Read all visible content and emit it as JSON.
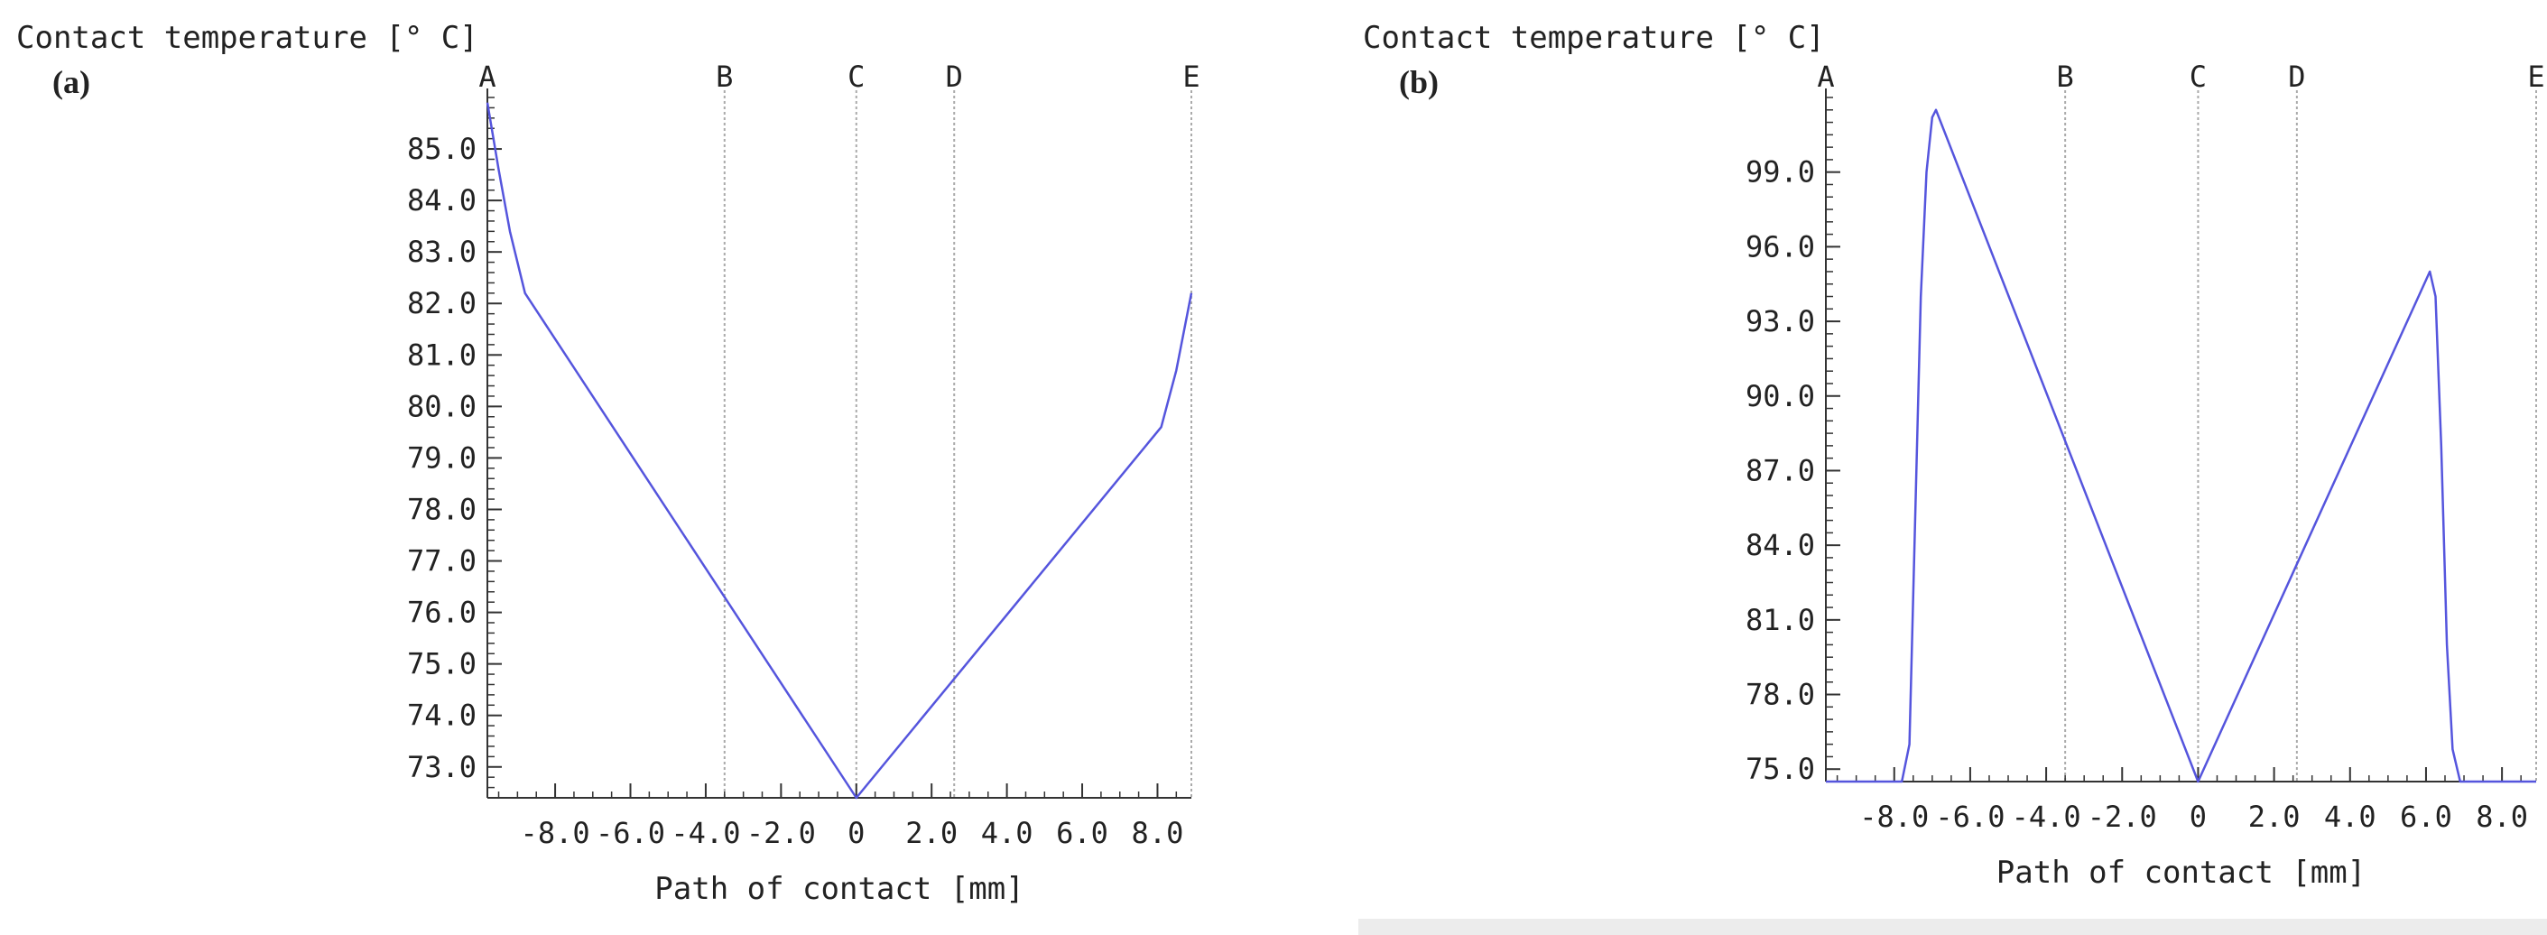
{
  "chart_data": [
    {
      "type": "line",
      "panel_label": "(a)",
      "ylabel": "Contact temperature [° C]",
      "xlabel": "Path of contact [mm]",
      "xlim": [
        -9.8,
        8.9
      ],
      "ylim": [
        72.4,
        86.0
      ],
      "x_ticks": [
        -8.0,
        -6.0,
        -4.0,
        -2.0,
        0,
        2.0,
        4.0,
        6.0,
        8.0
      ],
      "x_tick_labels": [
        "-8.0",
        "-6.0",
        "-4.0",
        "-2.0",
        "0",
        "2.0",
        "4.0",
        "6.0",
        "8.0"
      ],
      "y_ticks": [
        73.0,
        74.0,
        75.0,
        76.0,
        77.0,
        78.0,
        79.0,
        80.0,
        81.0,
        82.0,
        83.0,
        84.0,
        85.0
      ],
      "y_tick_labels": [
        "73.0",
        "74.0",
        "75.0",
        "76.0",
        "77.0",
        "78.0",
        "79.0",
        "80.0",
        "81.0",
        "82.0",
        "83.0",
        "84.0",
        "85.0"
      ],
      "markers": [
        {
          "label": "A",
          "x": -9.8
        },
        {
          "label": "B",
          "x": -3.5
        },
        {
          "label": "C",
          "x": 0
        },
        {
          "label": "D",
          "x": 2.6
        },
        {
          "label": "E",
          "x": 8.9
        }
      ],
      "series": [
        {
          "color": "#5555dd",
          "x": [
            -9.8,
            -9.5,
            -9.2,
            -8.8,
            0,
            8.1,
            8.5,
            8.9
          ],
          "y": [
            85.9,
            84.6,
            83.4,
            82.2,
            72.4,
            79.6,
            80.7,
            82.2
          ]
        }
      ]
    },
    {
      "type": "line",
      "panel_label": "(b)",
      "ylabel": "Contact temperature [° C]",
      "xlabel": "Path of contact [mm]",
      "xlim": [
        -9.8,
        8.9
      ],
      "ylim": [
        74.5,
        102.0
      ],
      "x_ticks": [
        -8.0,
        -6.0,
        -4.0,
        -2.0,
        0,
        2.0,
        4.0,
        6.0,
        8.0
      ],
      "x_tick_labels": [
        "-8.0",
        "-6.0",
        "-4.0",
        "-2.0",
        "0",
        "2.0",
        "4.0",
        "6.0",
        "8.0"
      ],
      "y_ticks": [
        75.0,
        78.0,
        81.0,
        84.0,
        87.0,
        90.0,
        93.0,
        96.0,
        99.0
      ],
      "y_tick_labels": [
        "75.0",
        "78.0",
        "81.0",
        "84.0",
        "87.0",
        "90.0",
        "93.0",
        "96.0",
        "99.0"
      ],
      "markers": [
        {
          "label": "A",
          "x": -9.8
        },
        {
          "label": "B",
          "x": -3.5
        },
        {
          "label": "C",
          "x": 0
        },
        {
          "label": "D",
          "x": 2.6
        },
        {
          "label": "E",
          "x": 8.9
        }
      ],
      "series": [
        {
          "color": "#5555dd",
          "x": [
            -9.8,
            -7.8,
            -7.6,
            -7.45,
            -7.3,
            -7.15,
            -7.0,
            -6.9,
            0,
            6.1,
            6.25,
            6.4,
            6.55,
            6.7,
            6.9,
            8.9
          ],
          "y": [
            74.5,
            74.5,
            76.0,
            85.0,
            94.0,
            99.0,
            101.2,
            101.5,
            74.5,
            95.0,
            94.0,
            88.0,
            80.0,
            75.8,
            74.5,
            74.5
          ]
        }
      ]
    }
  ]
}
